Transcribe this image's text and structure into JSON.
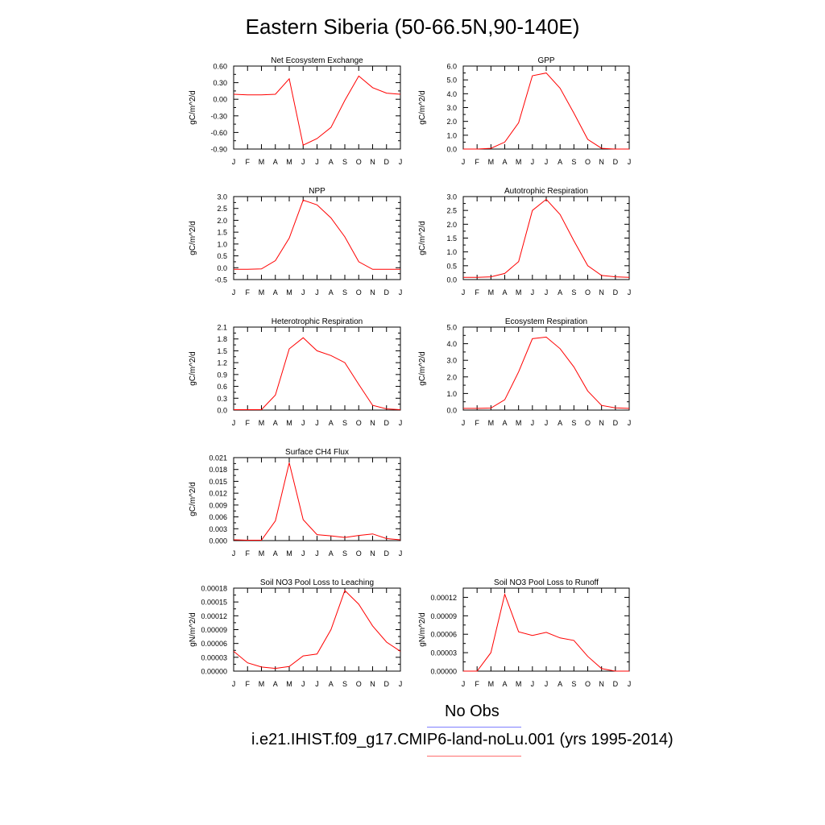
{
  "title": "Eastern Siberia (50-66.5N,90-140E)",
  "legend": {
    "obs_label": "No Obs",
    "obs_color": "#7e7eff",
    "case_label": "i.e21.IHIST.f09_g17.CMIP6-land-noLu.001 (yrs 1995-2014)",
    "case_color": "#ff6e6e"
  },
  "chart_data": [
    {
      "type": "line",
      "title": "Net Ecosystem Exchange",
      "ylabel": "gC/m^2/d",
      "categories": [
        "J",
        "F",
        "M",
        "A",
        "M",
        "J",
        "J",
        "A",
        "S",
        "O",
        "N",
        "D",
        "J"
      ],
      "ylim": [
        -0.9,
        0.6
      ],
      "yticks": [
        "0.60",
        "0.30",
        "0.00",
        "-0.30",
        "-0.60",
        "-0.90"
      ],
      "yticks_values": [
        0.6,
        0.3,
        0.0,
        -0.3,
        -0.6,
        -0.9
      ],
      "series": [
        {
          "color": "#ff0000",
          "values": [
            0.09,
            0.08,
            0.08,
            0.09,
            0.37,
            -0.83,
            -0.71,
            -0.51,
            -0.02,
            0.42,
            0.21,
            0.11,
            0.09
          ]
        }
      ]
    },
    {
      "type": "line",
      "title": "GPP",
      "ylabel": "gC/m^2/d",
      "categories": [
        "J",
        "F",
        "M",
        "A",
        "M",
        "J",
        "J",
        "A",
        "S",
        "O",
        "N",
        "D",
        "J"
      ],
      "ylim": [
        0.0,
        6.0
      ],
      "yticks": [
        "6.0",
        "5.0",
        "4.0",
        "3.0",
        "2.0",
        "1.0",
        "0.0"
      ],
      "yticks_values": [
        6,
        5,
        4,
        3,
        2,
        1,
        0
      ],
      "series": [
        {
          "color": "#ff0000",
          "values": [
            0.0,
            0.0,
            0.05,
            0.5,
            1.9,
            5.3,
            5.5,
            4.4,
            2.6,
            0.7,
            0.05,
            0.0,
            0.0
          ]
        }
      ]
    },
    {
      "type": "line",
      "title": "NPP",
      "ylabel": "gC/m^2/d",
      "categories": [
        "J",
        "F",
        "M",
        "A",
        "M",
        "J",
        "J",
        "A",
        "S",
        "O",
        "N",
        "D",
        "J"
      ],
      "ylim": [
        -0.5,
        3.0
      ],
      "yticks": [
        "3.0",
        "2.5",
        "2.0",
        "1.5",
        "1.0",
        "0.5",
        "0.0",
        "-0.5"
      ],
      "yticks_values": [
        3,
        2.5,
        2,
        1.5,
        1,
        0.5,
        0,
        -0.5
      ],
      "series": [
        {
          "color": "#ff0000",
          "values": [
            -0.07,
            -0.07,
            -0.05,
            0.3,
            1.25,
            2.85,
            2.65,
            2.1,
            1.3,
            0.25,
            -0.07,
            -0.07,
            -0.07
          ]
        }
      ]
    },
    {
      "type": "line",
      "title": "Autotrophic Respiration",
      "ylabel": "gC/m^2/d",
      "categories": [
        "J",
        "F",
        "M",
        "A",
        "M",
        "J",
        "J",
        "A",
        "S",
        "O",
        "N",
        "D",
        "J"
      ],
      "ylim": [
        0.0,
        3.0
      ],
      "yticks": [
        "3.0",
        "2.5",
        "2.0",
        "1.5",
        "1.0",
        "0.5",
        "0.0"
      ],
      "yticks_values": [
        3,
        2.5,
        2,
        1.5,
        1,
        0.5,
        0
      ],
      "series": [
        {
          "color": "#ff0000",
          "values": [
            0.08,
            0.08,
            0.1,
            0.22,
            0.65,
            2.5,
            2.9,
            2.35,
            1.4,
            0.5,
            0.15,
            0.1,
            0.08
          ]
        }
      ]
    },
    {
      "type": "line",
      "title": "Heterotrophic Respiration",
      "ylabel": "gC/m^2/d",
      "categories": [
        "J",
        "F",
        "M",
        "A",
        "M",
        "J",
        "J",
        "A",
        "S",
        "O",
        "N",
        "D",
        "J"
      ],
      "ylim": [
        0.0,
        2.1
      ],
      "yticks": [
        "2.1",
        "1.8",
        "1.5",
        "1.2",
        "0.9",
        "0.6",
        "0.3",
        "0.0"
      ],
      "yticks_values": [
        2.1,
        1.8,
        1.5,
        1.2,
        0.9,
        0.6,
        0.3,
        0.0
      ],
      "series": [
        {
          "color": "#ff0000",
          "values": [
            0.01,
            0.01,
            0.01,
            0.38,
            1.55,
            1.83,
            1.5,
            1.38,
            1.2,
            0.65,
            0.12,
            0.03,
            0.01
          ]
        }
      ]
    },
    {
      "type": "line",
      "title": "Ecosystem Respiration",
      "ylabel": "gC/m^2/d",
      "categories": [
        "J",
        "F",
        "M",
        "A",
        "M",
        "J",
        "J",
        "A",
        "S",
        "O",
        "N",
        "D",
        "J"
      ],
      "ylim": [
        0.0,
        5.0
      ],
      "yticks": [
        "5.0",
        "4.0",
        "3.0",
        "2.0",
        "1.0",
        "0.0"
      ],
      "yticks_values": [
        5,
        4,
        3,
        2,
        1,
        0
      ],
      "series": [
        {
          "color": "#ff0000",
          "values": [
            0.1,
            0.1,
            0.12,
            0.62,
            2.3,
            4.3,
            4.4,
            3.7,
            2.6,
            1.15,
            0.28,
            0.13,
            0.1
          ]
        }
      ]
    },
    {
      "type": "line",
      "title": "Surface CH4 Flux",
      "ylabel": "gC/m^2/d",
      "categories": [
        "J",
        "F",
        "M",
        "A",
        "M",
        "J",
        "J",
        "A",
        "S",
        "O",
        "N",
        "D",
        "J"
      ],
      "ylim": [
        0.0,
        0.021
      ],
      "yticks": [
        "0.021",
        "0.018",
        "0.015",
        "0.012",
        "0.009",
        "0.006",
        "0.003",
        "0.000"
      ],
      "yticks_values": [
        0.021,
        0.018,
        0.015,
        0.012,
        0.009,
        0.006,
        0.003,
        0.0
      ],
      "series": [
        {
          "color": "#ff0000",
          "values": [
            0.0002,
            0.0001,
            0.0001,
            0.005,
            0.0197,
            0.0053,
            0.0015,
            0.0012,
            0.0008,
            0.0013,
            0.0017,
            0.0005,
            0.0002
          ]
        }
      ]
    },
    {
      "type": "line",
      "title": "Soil NO3 Pool Loss to Leaching",
      "ylabel": "gN/m^2/d",
      "categories": [
        "J",
        "F",
        "M",
        "A",
        "M",
        "J",
        "J",
        "A",
        "S",
        "O",
        "N",
        "D",
        "J"
      ],
      "ylim": [
        0.0,
        0.00018
      ],
      "yticks": [
        "0.00018",
        "0.00015",
        "0.00012",
        "0.00009",
        "0.00006",
        "0.00003",
        "0.00000"
      ],
      "yticks_values": [
        0.00018,
        0.00015,
        0.00012,
        9e-05,
        6e-05,
        3e-05,
        0.0
      ],
      "series": [
        {
          "color": "#ff0000",
          "values": [
            4.3e-05,
            1.8e-05,
            9e-06,
            6e-06,
            1e-05,
            3.3e-05,
            3.7e-05,
            9e-05,
            0.000175,
            0.000145,
            9.8e-05,
            6.3e-05,
            4.3e-05
          ]
        }
      ]
    },
    {
      "type": "line",
      "title": "Soil NO3 Pool Loss to Runoff",
      "ylabel": "gN/m^2/d",
      "categories": [
        "J",
        "F",
        "M",
        "A",
        "M",
        "J",
        "J",
        "A",
        "S",
        "O",
        "N",
        "D",
        "J"
      ],
      "ylim": [
        0.0,
        0.000135
      ],
      "yticks": [
        "0.00012",
        "0.00009",
        "0.00006",
        "0.00003",
        "0.00000"
      ],
      "yticks_values": [
        0.00012,
        9e-05,
        6e-05,
        3e-05,
        0.0
      ],
      "series": [
        {
          "color": "#ff0000",
          "values": [
            0.0,
            0.0,
            3e-05,
            0.000125,
            6.4e-05,
            5.8e-05,
            6.3e-05,
            5.4e-05,
            5e-05,
            2.4e-05,
            4e-06,
            0.0,
            0.0
          ]
        }
      ]
    }
  ]
}
